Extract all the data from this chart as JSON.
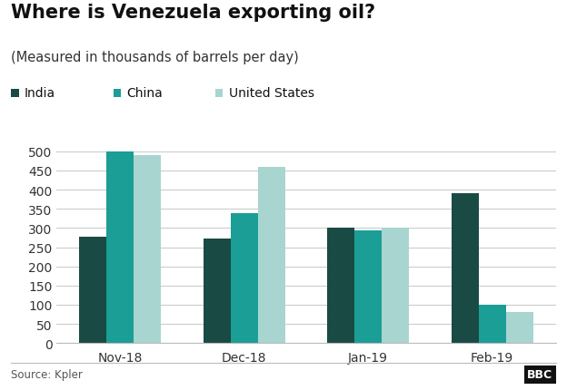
{
  "title": "Where is Venezuela exporting oil?",
  "subtitle": "(Measured in thousands of barrels per day)",
  "categories": [
    "Nov-18",
    "Dec-18",
    "Jan-19",
    "Feb-19"
  ],
  "series": {
    "India": [
      278,
      273,
      300,
      390
    ],
    "China": [
      500,
      340,
      295,
      100
    ],
    "United States": [
      490,
      460,
      300,
      80
    ]
  },
  "colors": {
    "India": "#1a4a44",
    "China": "#1a9e96",
    "United States": "#a8d5cf"
  },
  "ylim": [
    0,
    530
  ],
  "yticks": [
    0,
    50,
    100,
    150,
    200,
    250,
    300,
    350,
    400,
    450,
    500
  ],
  "source": "Source: Kpler",
  "background_color": "#ffffff",
  "grid_color": "#cccccc",
  "title_fontsize": 15,
  "subtitle_fontsize": 10.5,
  "tick_fontsize": 10,
  "legend_fontsize": 10,
  "bar_width": 0.22
}
